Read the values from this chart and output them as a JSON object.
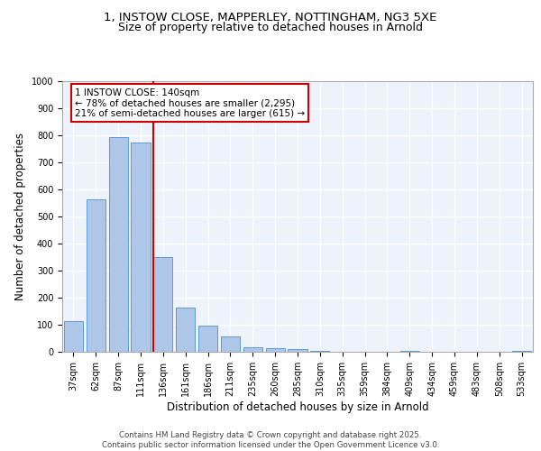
{
  "title_line1": "1, INSTOW CLOSE, MAPPERLEY, NOTTINGHAM, NG3 5XE",
  "title_line2": "Size of property relative to detached houses in Arnold",
  "xlabel": "Distribution of detached houses by size in Arnold",
  "ylabel": "Number of detached properties",
  "categories": [
    "37sqm",
    "62sqm",
    "87sqm",
    "111sqm",
    "136sqm",
    "161sqm",
    "186sqm",
    "211sqm",
    "235sqm",
    "260sqm",
    "285sqm",
    "310sqm",
    "335sqm",
    "359sqm",
    "384sqm",
    "409sqm",
    "434sqm",
    "459sqm",
    "483sqm",
    "508sqm",
    "533sqm"
  ],
  "values": [
    112,
    562,
    792,
    775,
    350,
    165,
    98,
    57,
    18,
    13,
    10,
    5,
    0,
    0,
    0,
    5,
    0,
    0,
    0,
    0,
    5
  ],
  "bar_color": "#aec6e8",
  "bar_edge_color": "#5b9bd5",
  "vline_color": "#cc0000",
  "vline_index": 4,
  "annotation_text": "1 INSTOW CLOSE: 140sqm\n← 78% of detached houses are smaller (2,295)\n21% of semi-detached houses are larger (615) →",
  "annotation_box_color": "#ffffff",
  "annotation_box_edge": "#cc0000",
  "background_color": "#eef2fa",
  "grid_color": "#ffffff",
  "ylim": [
    0,
    1000
  ],
  "yticks": [
    0,
    100,
    200,
    300,
    400,
    500,
    600,
    700,
    800,
    900,
    1000
  ],
  "footer_text": "Contains HM Land Registry data © Crown copyright and database right 2025.\nContains public sector information licensed under the Open Government Licence v3.0.",
  "title_fontsize": 9.5,
  "subtitle_fontsize": 9,
  "axis_label_fontsize": 8.5,
  "tick_fontsize": 7,
  "annotation_fontsize": 7.5,
  "footer_fontsize": 6.2
}
